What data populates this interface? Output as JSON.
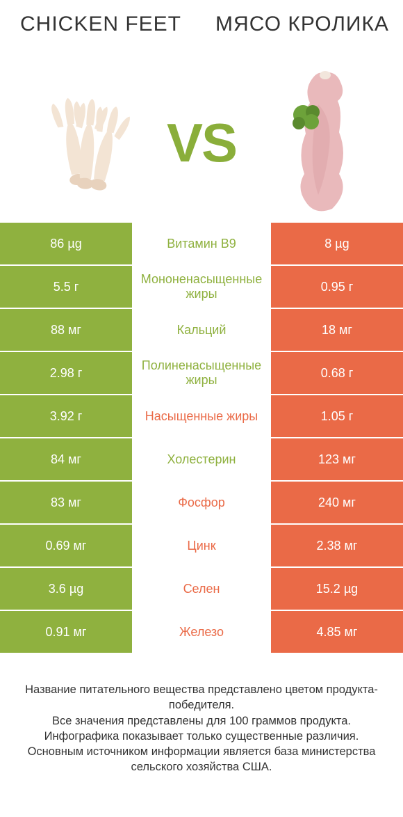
{
  "colors": {
    "green": "#8fb13f",
    "orange": "#ea6a47",
    "vs": "#8aae3a",
    "white": "#ffffff"
  },
  "header": {
    "left": "CHICKEN FEET",
    "right": "МЯСО КРОЛИКА"
  },
  "vs_label": "VS",
  "rows": [
    {
      "left": "86 µg",
      "mid": "Витамин B9",
      "right": "8 µg",
      "winner": "left"
    },
    {
      "left": "5.5 г",
      "mid": "Мононенасыщенные жиры",
      "right": "0.95 г",
      "winner": "left"
    },
    {
      "left": "88 мг",
      "mid": "Кальций",
      "right": "18 мг",
      "winner": "left"
    },
    {
      "left": "2.98 г",
      "mid": "Полиненасыщенные жиры",
      "right": "0.68 г",
      "winner": "left"
    },
    {
      "left": "3.92 г",
      "mid": "Насыщенные жиры",
      "right": "1.05 г",
      "winner": "right"
    },
    {
      "left": "84 мг",
      "mid": "Холестерин",
      "right": "123 мг",
      "winner": "left"
    },
    {
      "left": "83 мг",
      "mid": "Фосфор",
      "right": "240 мг",
      "winner": "right"
    },
    {
      "left": "0.69 мг",
      "mid": "Цинк",
      "right": "2.38 мг",
      "winner": "right"
    },
    {
      "left": "3.6 µg",
      "mid": "Селен",
      "right": "15.2 µg",
      "winner": "right"
    },
    {
      "left": "0.91 мг",
      "mid": "Железо",
      "right": "4.85 мг",
      "winner": "right"
    }
  ],
  "footer": {
    "line1": "Название питательного вещества представлено цветом продукта-победителя.",
    "line2": "Все значения представлены для 100 граммов продукта.",
    "line3": "Инфографика показывает только существенные различия.",
    "line4": "Основным источником информации является база министерства сельского хозяйства США."
  },
  "illustrations": {
    "chicken_feet": {
      "skin": "#f3e4d4",
      "shadow": "#e8d2bd",
      "nail": "#d9c2a8"
    },
    "rabbit_meat": {
      "flesh": "#e9b9bb",
      "flesh_dark": "#dba1a6",
      "bone": "#f2e6dc",
      "leaf": "#6da23a",
      "leaf_dark": "#5a8a2e"
    }
  }
}
